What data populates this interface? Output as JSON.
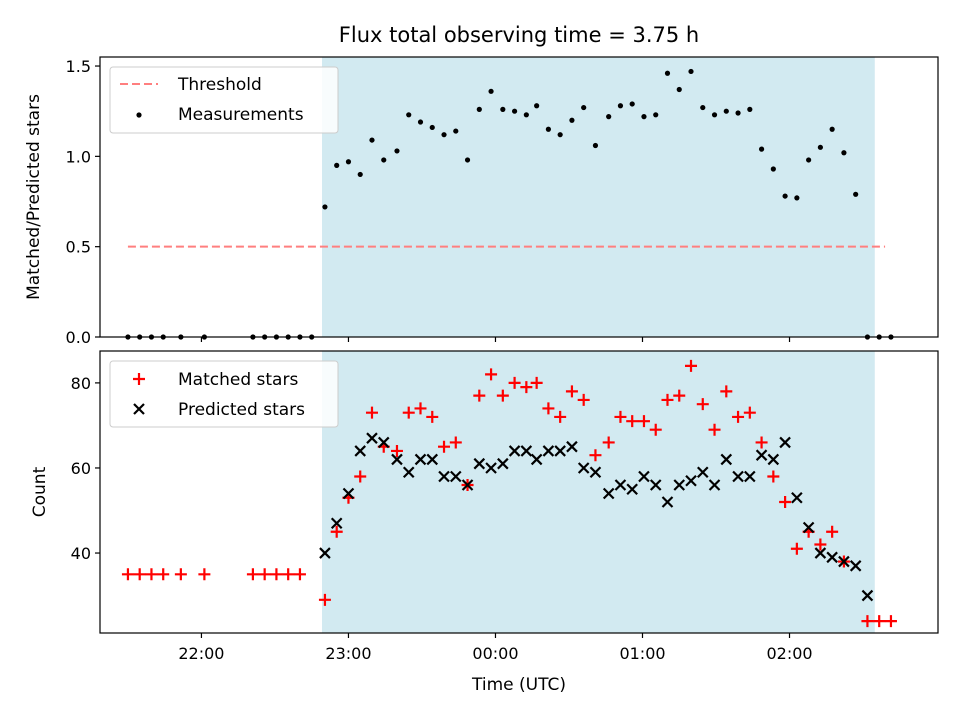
{
  "figure": {
    "title": "Flux total observing time = 3.75 h",
    "xlabel": "Time (UTC)",
    "xticks": [
      {
        "h": 22.0,
        "label": "22:00"
      },
      {
        "h": 23.0,
        "label": "23:00"
      },
      {
        "h": 24.0,
        "label": "00:00"
      },
      {
        "h": 25.0,
        "label": "01:00"
      },
      {
        "h": 26.0,
        "label": "02:00"
      }
    ],
    "xlim": [
      21.31,
      27.01
    ],
    "span": [
      22.82,
      26.58
    ],
    "colors": {
      "span": "#add8e6",
      "threshold": "#ff7f7f",
      "matched": "#ff0000",
      "predicted": "#000000"
    }
  },
  "chart_data": [
    {
      "type": "scatter",
      "ylabel": "Matched/Predicted stars",
      "ylim": [
        0,
        1.55
      ],
      "yticks": [
        {
          "v": 0,
          "label": "0.0"
        },
        {
          "v": 0.5,
          "label": "0.5"
        },
        {
          "v": 1.0,
          "label": "1.0"
        },
        {
          "v": 1.5,
          "label": "1.5"
        }
      ],
      "legend": {
        "placement": "upper-left",
        "threshold_label": "Threshold",
        "measurements_label": "Measurements"
      },
      "threshold": {
        "value": 0.5,
        "x_range": [
          21.5,
          26.65
        ]
      },
      "x": [
        21.5,
        21.58,
        21.66,
        21.74,
        21.86,
        22.02,
        22.35,
        22.43,
        22.51,
        22.59,
        22.67,
        22.75,
        22.84,
        22.92,
        23.0,
        23.08,
        23.16,
        23.24,
        23.33,
        23.41,
        23.49,
        23.57,
        23.65,
        23.73,
        23.81,
        23.89,
        23.97,
        24.05,
        24.13,
        24.21,
        24.28,
        24.36,
        24.44,
        24.52,
        24.6,
        24.68,
        24.77,
        24.85,
        24.93,
        25.01,
        25.09,
        25.17,
        25.25,
        25.33,
        25.41,
        25.49,
        25.57,
        25.65,
        25.73,
        25.81,
        25.89,
        25.97,
        26.05,
        26.13,
        26.21,
        26.29,
        26.37,
        26.45,
        26.53,
        26.61,
        26.69
      ],
      "y": [
        0,
        0,
        0,
        0,
        0,
        0,
        0,
        0,
        0,
        0,
        0,
        0,
        0.72,
        0.95,
        0.97,
        0.9,
        1.09,
        0.98,
        1.03,
        1.23,
        1.19,
        1.16,
        1.12,
        1.14,
        0.98,
        1.26,
        1.36,
        1.26,
        1.25,
        1.23,
        1.28,
        1.15,
        1.12,
        1.2,
        1.27,
        1.06,
        1.22,
        1.28,
        1.29,
        1.22,
        1.23,
        1.46,
        1.37,
        1.47,
        1.27,
        1.23,
        1.25,
        1.24,
        1.26,
        1.04,
        0.93,
        0.78,
        0.77,
        0.98,
        1.05,
        1.15,
        1.02,
        0.79,
        0,
        0,
        0
      ]
    },
    {
      "type": "scatter",
      "ylabel": "Count",
      "ylim": [
        21.2,
        87.5
      ],
      "yticks": [
        {
          "v": 40,
          "label": "40"
        },
        {
          "v": 60,
          "label": "60"
        },
        {
          "v": 80,
          "label": "80"
        }
      ],
      "legend": {
        "placement": "upper-left"
      },
      "series": [
        {
          "name": "Matched stars",
          "x": [
            21.5,
            21.58,
            21.66,
            21.74,
            21.86,
            22.02,
            22.35,
            22.43,
            22.51,
            22.59,
            22.67,
            22.84,
            22.92,
            23.0,
            23.08,
            23.16,
            23.24,
            23.33,
            23.41,
            23.49,
            23.57,
            23.65,
            23.73,
            23.81,
            23.89,
            23.97,
            24.05,
            24.13,
            24.21,
            24.28,
            24.36,
            24.44,
            24.52,
            24.6,
            24.68,
            24.77,
            24.85,
            24.93,
            25.01,
            25.09,
            25.17,
            25.25,
            25.33,
            25.41,
            25.49,
            25.57,
            25.65,
            25.73,
            25.81,
            25.89,
            25.97,
            26.05,
            26.13,
            26.21,
            26.29,
            26.37,
            26.53,
            26.61,
            26.69
          ],
          "y": [
            35,
            35,
            35,
            35,
            35,
            35,
            35,
            35,
            35,
            35,
            35,
            29,
            45,
            53,
            58,
            73,
            65,
            64,
            73,
            74,
            72,
            65,
            66,
            56,
            77,
            82,
            77,
            80,
            79,
            80,
            74,
            72,
            78,
            76,
            63,
            66,
            72,
            71,
            71,
            69,
            76,
            77,
            84,
            75,
            69,
            78,
            72,
            73,
            66,
            58,
            52,
            41,
            45,
            42,
            45,
            38,
            24,
            24,
            24
          ]
        },
        {
          "name": "Predicted stars",
          "x": [
            22.84,
            22.92,
            23.0,
            23.08,
            23.16,
            23.24,
            23.33,
            23.41,
            23.49,
            23.57,
            23.65,
            23.73,
            23.81,
            23.89,
            23.97,
            24.05,
            24.13,
            24.21,
            24.28,
            24.36,
            24.44,
            24.52,
            24.6,
            24.68,
            24.77,
            24.85,
            24.93,
            25.01,
            25.09,
            25.17,
            25.25,
            25.33,
            25.41,
            25.49,
            25.57,
            25.65,
            25.73,
            25.81,
            25.89,
            25.97,
            26.05,
            26.13,
            26.21,
            26.29,
            26.37,
            26.45
          ],
          "y": [
            40,
            47,
            54,
            64,
            67,
            66,
            62,
            59,
            62,
            62,
            58,
            58,
            56,
            61,
            60,
            61,
            64,
            64,
            62,
            64,
            64,
            65,
            60,
            59,
            54,
            56,
            55,
            58,
            56,
            52,
            56,
            57,
            59,
            56,
            62,
            58,
            58,
            63,
            62,
            66,
            53,
            46,
            40,
            39,
            38,
            37
          ]
        },
        {
          "name": "",
          "x": [
            26.53
          ],
          "y": [
            30
          ]
        }
      ]
    }
  ]
}
